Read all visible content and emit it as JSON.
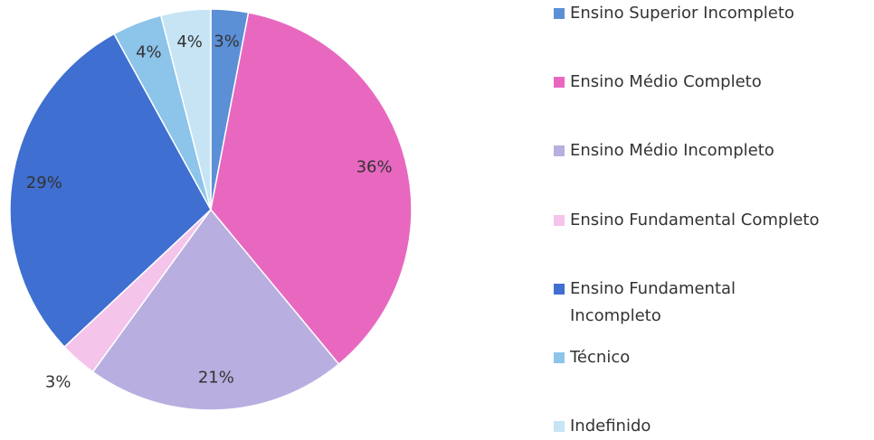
{
  "chart_data": {
    "type": "pie",
    "categories": [
      "Ensino Superior Incompleto",
      "Ensino Médio Completo",
      "Ensino Médio Incompleto",
      "Ensino Fundamental Completo",
      "Ensino Fundamental Incompleto",
      "Técnico",
      "Indefinido"
    ],
    "values": [
      3,
      36,
      21,
      3,
      29,
      4,
      4
    ],
    "value_labels": [
      "3%",
      "36%",
      "21%",
      "3%",
      "29%",
      "4%",
      "4%"
    ],
    "colors": [
      "#5b8fd6",
      "#e868c0",
      "#b9aee0",
      "#f4c4ea",
      "#3f6fd0",
      "#8cc4ea",
      "#c6e4f4"
    ],
    "legend": "right"
  }
}
